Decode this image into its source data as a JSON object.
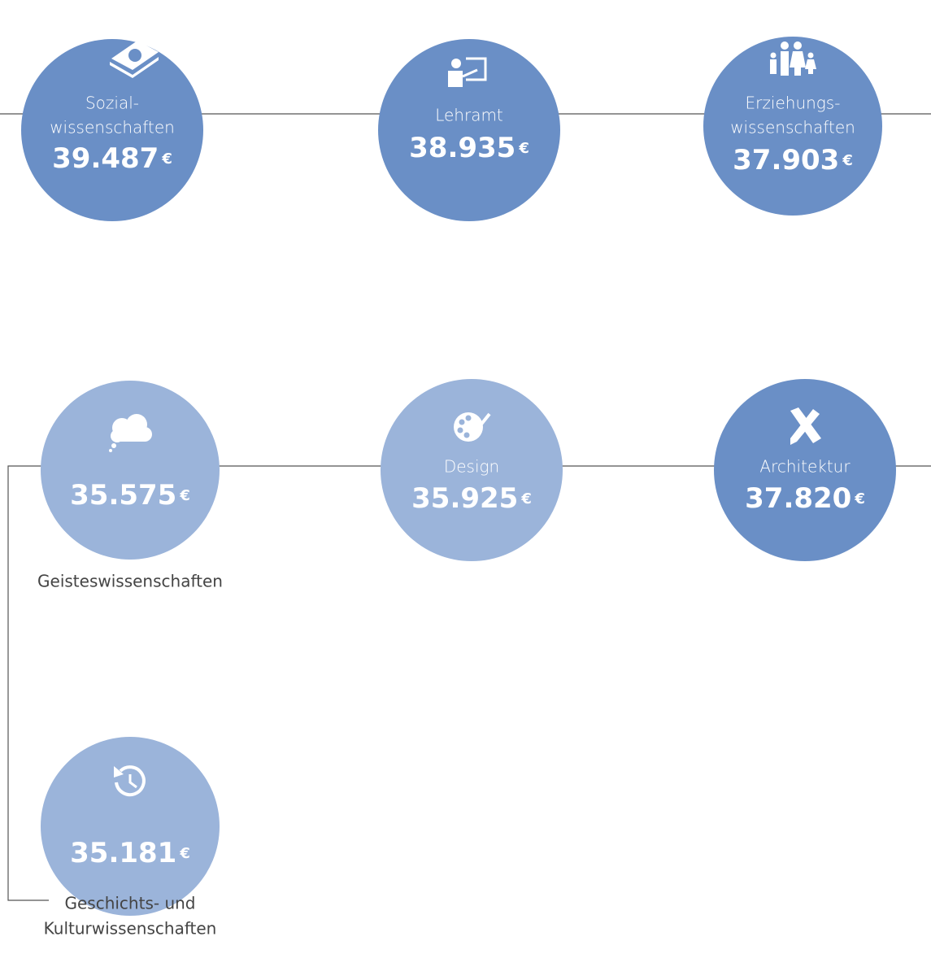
{
  "nodes": [
    {
      "label": [
        "Sozial-",
        "wissenschaften"
      ],
      "value": "39.487",
      "currency": "€"
    },
    {
      "label": [
        "Lehramt"
      ],
      "value": "38.935",
      "currency": "€"
    },
    {
      "label": [
        "Erziehungs-",
        "wissenschaften"
      ],
      "value": "37.903",
      "currency": "€"
    },
    {
      "label": [
        "Geisteswissenschaften"
      ],
      "value": "35.575",
      "currency": "€"
    },
    {
      "label": [
        "Design"
      ],
      "value": "35.925",
      "currency": "€"
    },
    {
      "label": [
        "Architektur"
      ],
      "value": "37.820",
      "currency": "€"
    },
    {
      "label": [
        "Geschichts- und",
        "Kulturwissenschaften"
      ],
      "value": "35.181",
      "currency": "€"
    }
  ]
}
